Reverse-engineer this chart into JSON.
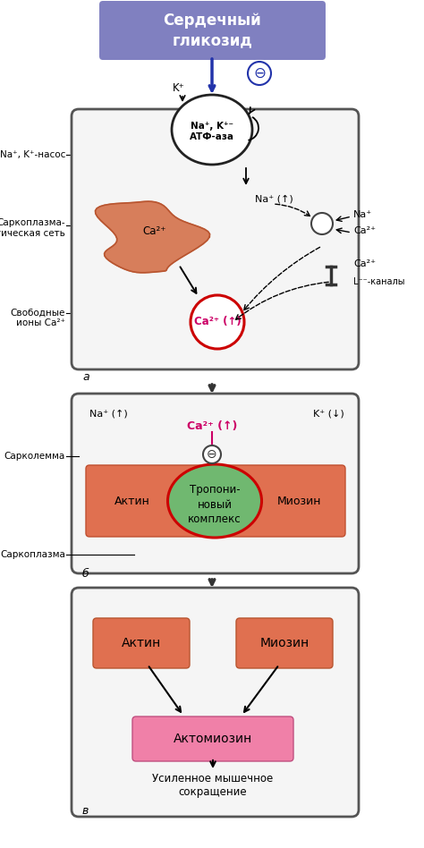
{
  "title": "Сердечный\nгликозид",
  "title_bg": "#8080c0",
  "title_text_color": "white",
  "pump_label": "Na⁺, K⁺⁻\nАТФ-аза",
  "na_pump_label": "Na⁺, K⁺-насос",
  "sarco_net_label": "Саркоплазма-\nтическая сеть",
  "free_ca_label": "Свободные\nионы Ca²⁺",
  "l_channels_label": "L⁻⁻-каналы",
  "reticulum_color": "#d4714a",
  "ca2_up_label": "Ca²⁺ (↑)",
  "na_up_label": "Na⁺ (↑)",
  "na_label": "Na⁺",
  "ca_label": "Ca²⁺",
  "k_label": "K⁺",
  "kplus_down": "K⁺ (↓)",
  "naplus_up": "Na⁺ (↑)",
  "sarcolemma_label": "Сарколемма",
  "sarcoplasm_label": "Саркоплазма",
  "troponin_label": "Тропони-\nновый\nкомплекс",
  "actin_label": "Актин",
  "myosin_label": "Миозин",
  "actomyosin_label": "Актомиозин",
  "muscle_label": "Усиленное мышечное\nсокращение",
  "actin_box_color": "#e07050",
  "myosin_box_color": "#e07050",
  "actomyosin_box_color": "#f080a8",
  "troponin_circle_color": "#70b870",
  "sarcolemma_bar_color": "#e07050",
  "bg_color": "#f5f5f5"
}
